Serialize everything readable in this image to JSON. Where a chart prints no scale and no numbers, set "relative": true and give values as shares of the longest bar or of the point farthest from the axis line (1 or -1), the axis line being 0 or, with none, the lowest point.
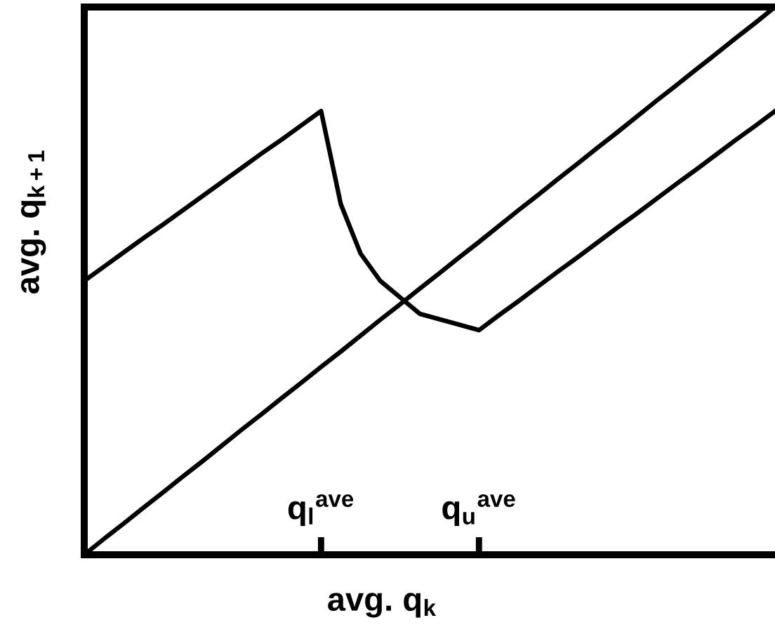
{
  "chart_data": {
    "type": "line",
    "xlabel": "avg. q$_{k}$",
    "ylabel": "avg. q$_{k+1}$",
    "relative": true,
    "categories": [
      null,
      null,
      null,
      null,
      null,
      null,
      null,
      null,
      null,
      null,
      null,
      null,
      "q$_{l}$$^{ave}$",
      null,
      null,
      null,
      null,
      null,
      null,
      null,
      "q$_{u}$$^{ave}$",
      null,
      null,
      null,
      null,
      null,
      null,
      null,
      null,
      null,
      null,
      null,
      null,
      null,
      null,
      null
    ],
    "series": [
      {
        "color": "#000000",
        "values": [
          0,
          0.029,
          0.057,
          0.086,
          0.114,
          0.143,
          0.171,
          0.2,
          0.229,
          0.257,
          0.286,
          0.314,
          0.343,
          0.371,
          0.4,
          0.429,
          0.457,
          0.486,
          0.514,
          0.543,
          0.571,
          0.6,
          0.629,
          0.657,
          0.686,
          0.714,
          0.743,
          0.771,
          0.8,
          0.829,
          0.857,
          0.886,
          0.914,
          0.943,
          0.971,
          1
        ]
      },
      {
        "color": "#000000",
        "values": [
          0.5,
          0.526,
          0.552,
          0.578,
          0.603,
          0.629,
          0.655,
          0.681,
          0.707,
          0.733,
          0.758,
          0.784,
          0.81,
          0.64,
          0.55,
          0.5,
          0.47,
          0.44,
          0.43,
          0.42,
          0.41,
          0.437,
          0.463,
          0.49,
          0.517,
          0.543,
          0.57,
          0.597,
          0.623,
          0.65,
          0.677,
          0.703,
          0.73,
          0.757,
          0.783,
          0.81
        ]
      }
    ],
    "grid": false,
    "marker": "none",
    "line_style": "solid"
  }
}
